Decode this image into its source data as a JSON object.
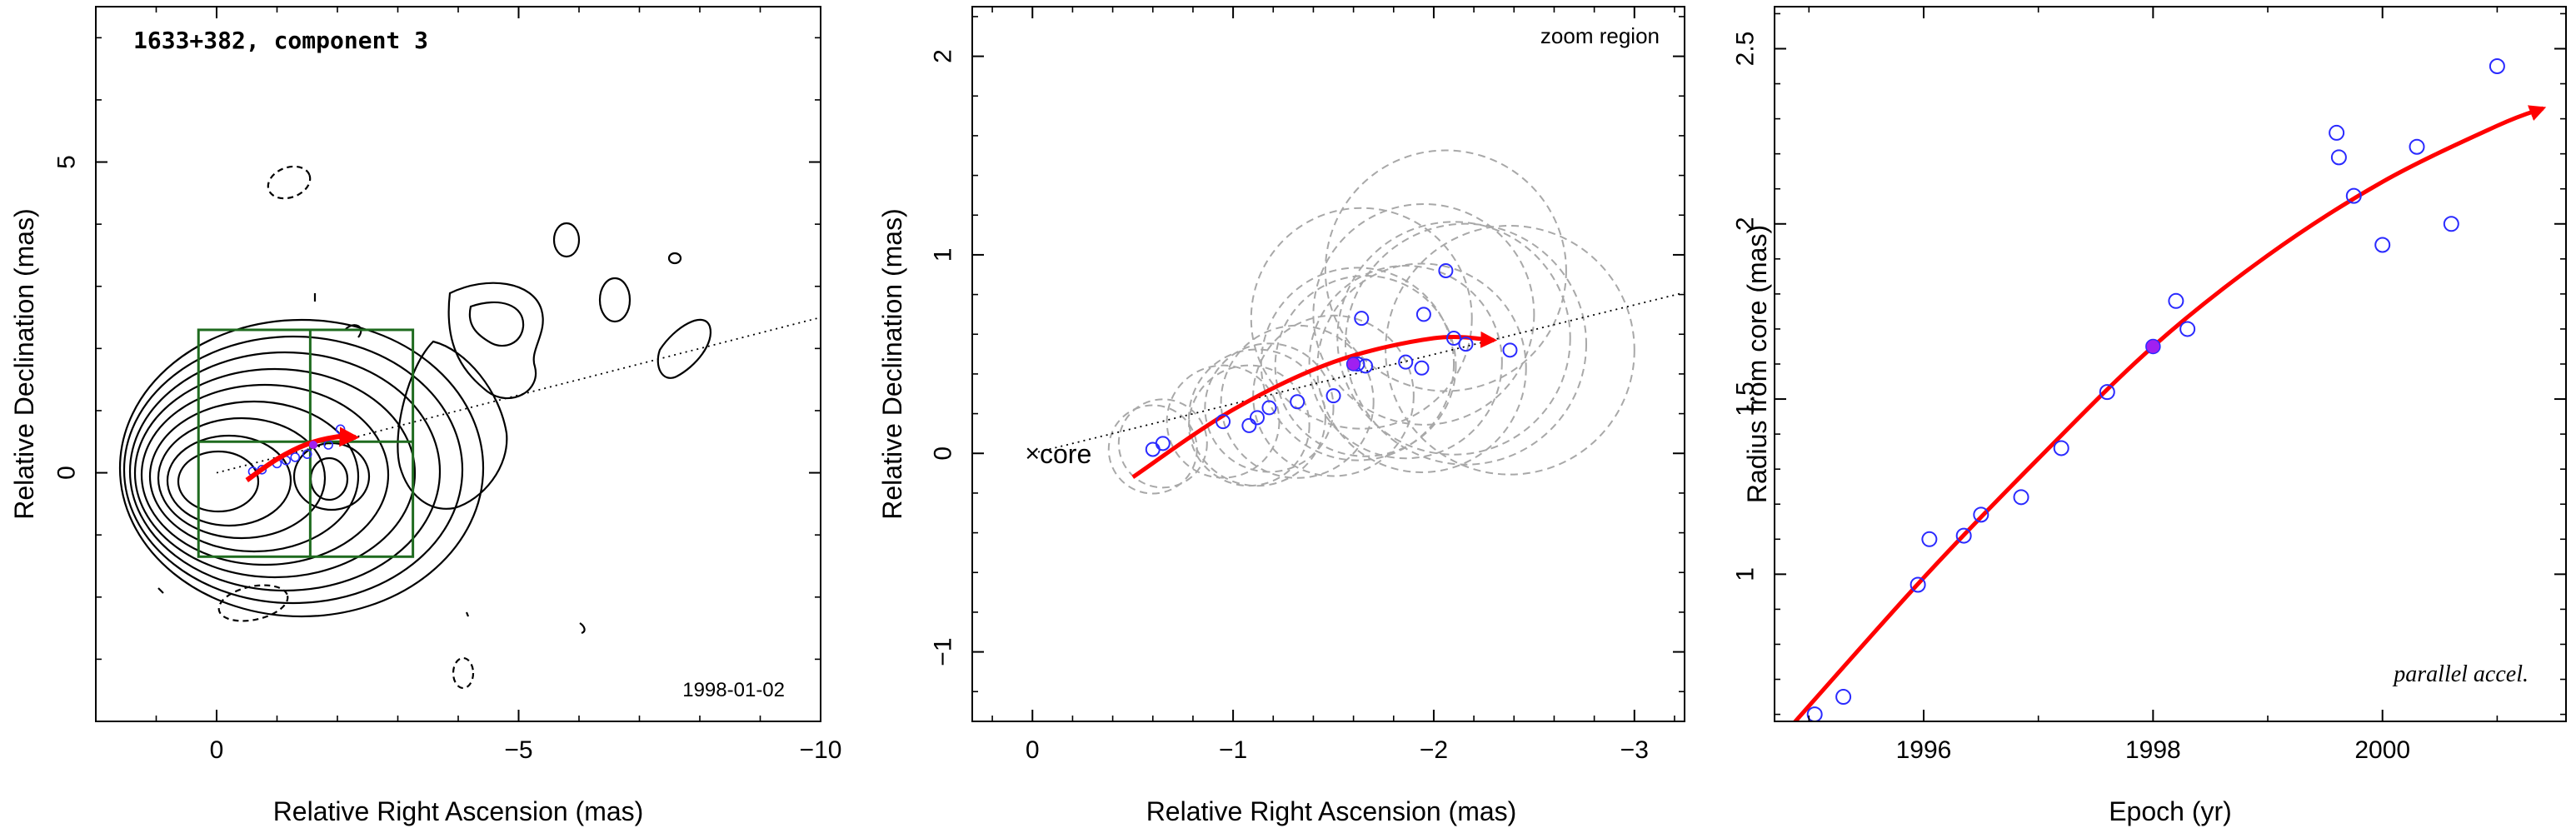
{
  "panels": {
    "map": {
      "title": "1633+382, component 3",
      "date": "1998-01-02",
      "xlabel": "Relative Right Ascension (mas)",
      "ylabel": "Relative Declination (mas)"
    },
    "zoom": {
      "label": "zoom region",
      "core_label": "core",
      "xlabel": "Relative Right Ascension (mas)",
      "ylabel": "Relative Declination (mas)"
    },
    "radius": {
      "label": "parallel accel.",
      "xlabel": "Epoch (yr)",
      "ylabel": "Radius from core (mas)"
    }
  },
  "colors": {
    "track": "#ff0000",
    "points": "#2a2aff",
    "reference_point": "#a020f0",
    "box": "#1f6b1f",
    "contours": "#000000",
    "fit_circles": "#a8a8a8"
  },
  "chart_data": [
    {
      "type": "contour",
      "title": "1633+382, component 3",
      "date": "1998-01-02",
      "xlabel": "Relative Right Ascension (mas)",
      "ylabel": "Relative Declination (mas)",
      "xlim": [
        2,
        -10
      ],
      "ylim": [
        -4,
        7.5
      ],
      "xticks": [
        0,
        -5,
        -10
      ],
      "yticks": [
        0,
        5
      ],
      "grid": false,
      "points": {
        "x": [
          -0.6,
          -0.75,
          -1.0,
          -1.15,
          -1.3,
          -1.5,
          -1.85,
          -2.05
        ],
        "y": [
          0.02,
          0.05,
          0.15,
          0.2,
          0.25,
          0.3,
          0.45,
          0.7
        ]
      },
      "track": {
        "x": [
          -0.5,
          -1.0,
          -1.5,
          -2.0,
          -2.3
        ],
        "y": [
          -0.12,
          0.22,
          0.46,
          0.58,
          0.57
        ]
      },
      "reference_point": {
        "x": -1.6,
        "y": 0.45
      },
      "jet_axis": {
        "x": [
          0,
          -10
        ],
        "y": [
          0,
          2.5
        ]
      },
      "zoom_box": {
        "x": [
          0.3,
          -3.25
        ],
        "y": [
          -1.35,
          2.3
        ],
        "divider_x": -1.55,
        "divider_y": 0.5
      }
    },
    {
      "type": "scatter",
      "label": "zoom region",
      "xlabel": "Relative Right Ascension (mas)",
      "ylabel": "Relative Declination (mas)",
      "xlim": [
        0.3,
        -3.25
      ],
      "ylim": [
        -1.35,
        2.25
      ],
      "xticks": [
        0,
        -1,
        -2,
        -3
      ],
      "yticks": [
        -1,
        0,
        1,
        2
      ],
      "grid": false,
      "series": [
        {
          "x": [
            -0.6,
            -0.65,
            -0.95,
            -1.08,
            -1.12,
            -1.18,
            -1.32,
            -1.5,
            -1.62,
            -1.64,
            -1.66,
            -1.86,
            -1.94,
            -1.95,
            -2.06,
            -2.1,
            -2.16,
            -2.38
          ],
          "y": [
            0.02,
            0.05,
            0.16,
            0.14,
            0.18,
            0.23,
            0.26,
            0.29,
            0.45,
            0.68,
            0.44,
            0.46,
            0.43,
            0.7,
            0.92,
            0.58,
            0.55,
            0.52
          ]
        }
      ],
      "fit_circle_radius": [
        0.22,
        0.22,
        0.28,
        0.3,
        0.34,
        0.32,
        0.38,
        0.4,
        0.48,
        0.55,
        0.45,
        0.48,
        0.52,
        0.55,
        0.6,
        0.58,
        0.6,
        0.62
      ],
      "track": {
        "x": [
          -0.5,
          -1.0,
          -1.5,
          -2.0,
          -2.3
        ],
        "y": [
          -0.12,
          0.22,
          0.46,
          0.58,
          0.57
        ]
      },
      "reference_point": {
        "x": -1.6,
        "y": 0.45
      },
      "jet_axis": {
        "x": [
          0,
          -3.25
        ],
        "y": [
          0,
          0.81
        ]
      },
      "core_marker": {
        "x": 0,
        "y": 0
      }
    },
    {
      "type": "scatter",
      "label": "parallel accel.",
      "xlabel": "Epoch (yr)",
      "ylabel": "Radius from core (mas)",
      "xlim": [
        1994.7,
        2001.6
      ],
      "ylim": [
        0.58,
        2.62
      ],
      "xticks": [
        1996,
        1998,
        2000
      ],
      "yticks": [
        1,
        1.5,
        2,
        2.5
      ],
      "grid": false,
      "series": [
        {
          "x": [
            1995.05,
            1995.3,
            1995.95,
            1996.05,
            1996.35,
            1996.5,
            1996.85,
            1997.2,
            1997.6,
            1998.2,
            1998.3,
            1999.6,
            1999.62,
            1999.75,
            2000.0,
            2000.3,
            2000.6,
            2001.0
          ],
          "y": [
            0.6,
            0.65,
            0.97,
            1.1,
            1.11,
            1.17,
            1.22,
            1.36,
            1.52,
            1.78,
            1.7,
            2.26,
            2.19,
            2.08,
            1.94,
            2.22,
            2.0,
            2.45
          ]
        }
      ],
      "track": {
        "x": [
          1994.8,
          1996.0,
          1997.0,
          1998.0,
          1999.0,
          2000.0,
          2001.0,
          2001.4
        ],
        "y": [
          0.55,
          0.99,
          1.33,
          1.65,
          1.91,
          2.12,
          2.28,
          2.33
        ]
      },
      "reference_point": {
        "x": 1998.0,
        "y": 1.65
      }
    }
  ]
}
